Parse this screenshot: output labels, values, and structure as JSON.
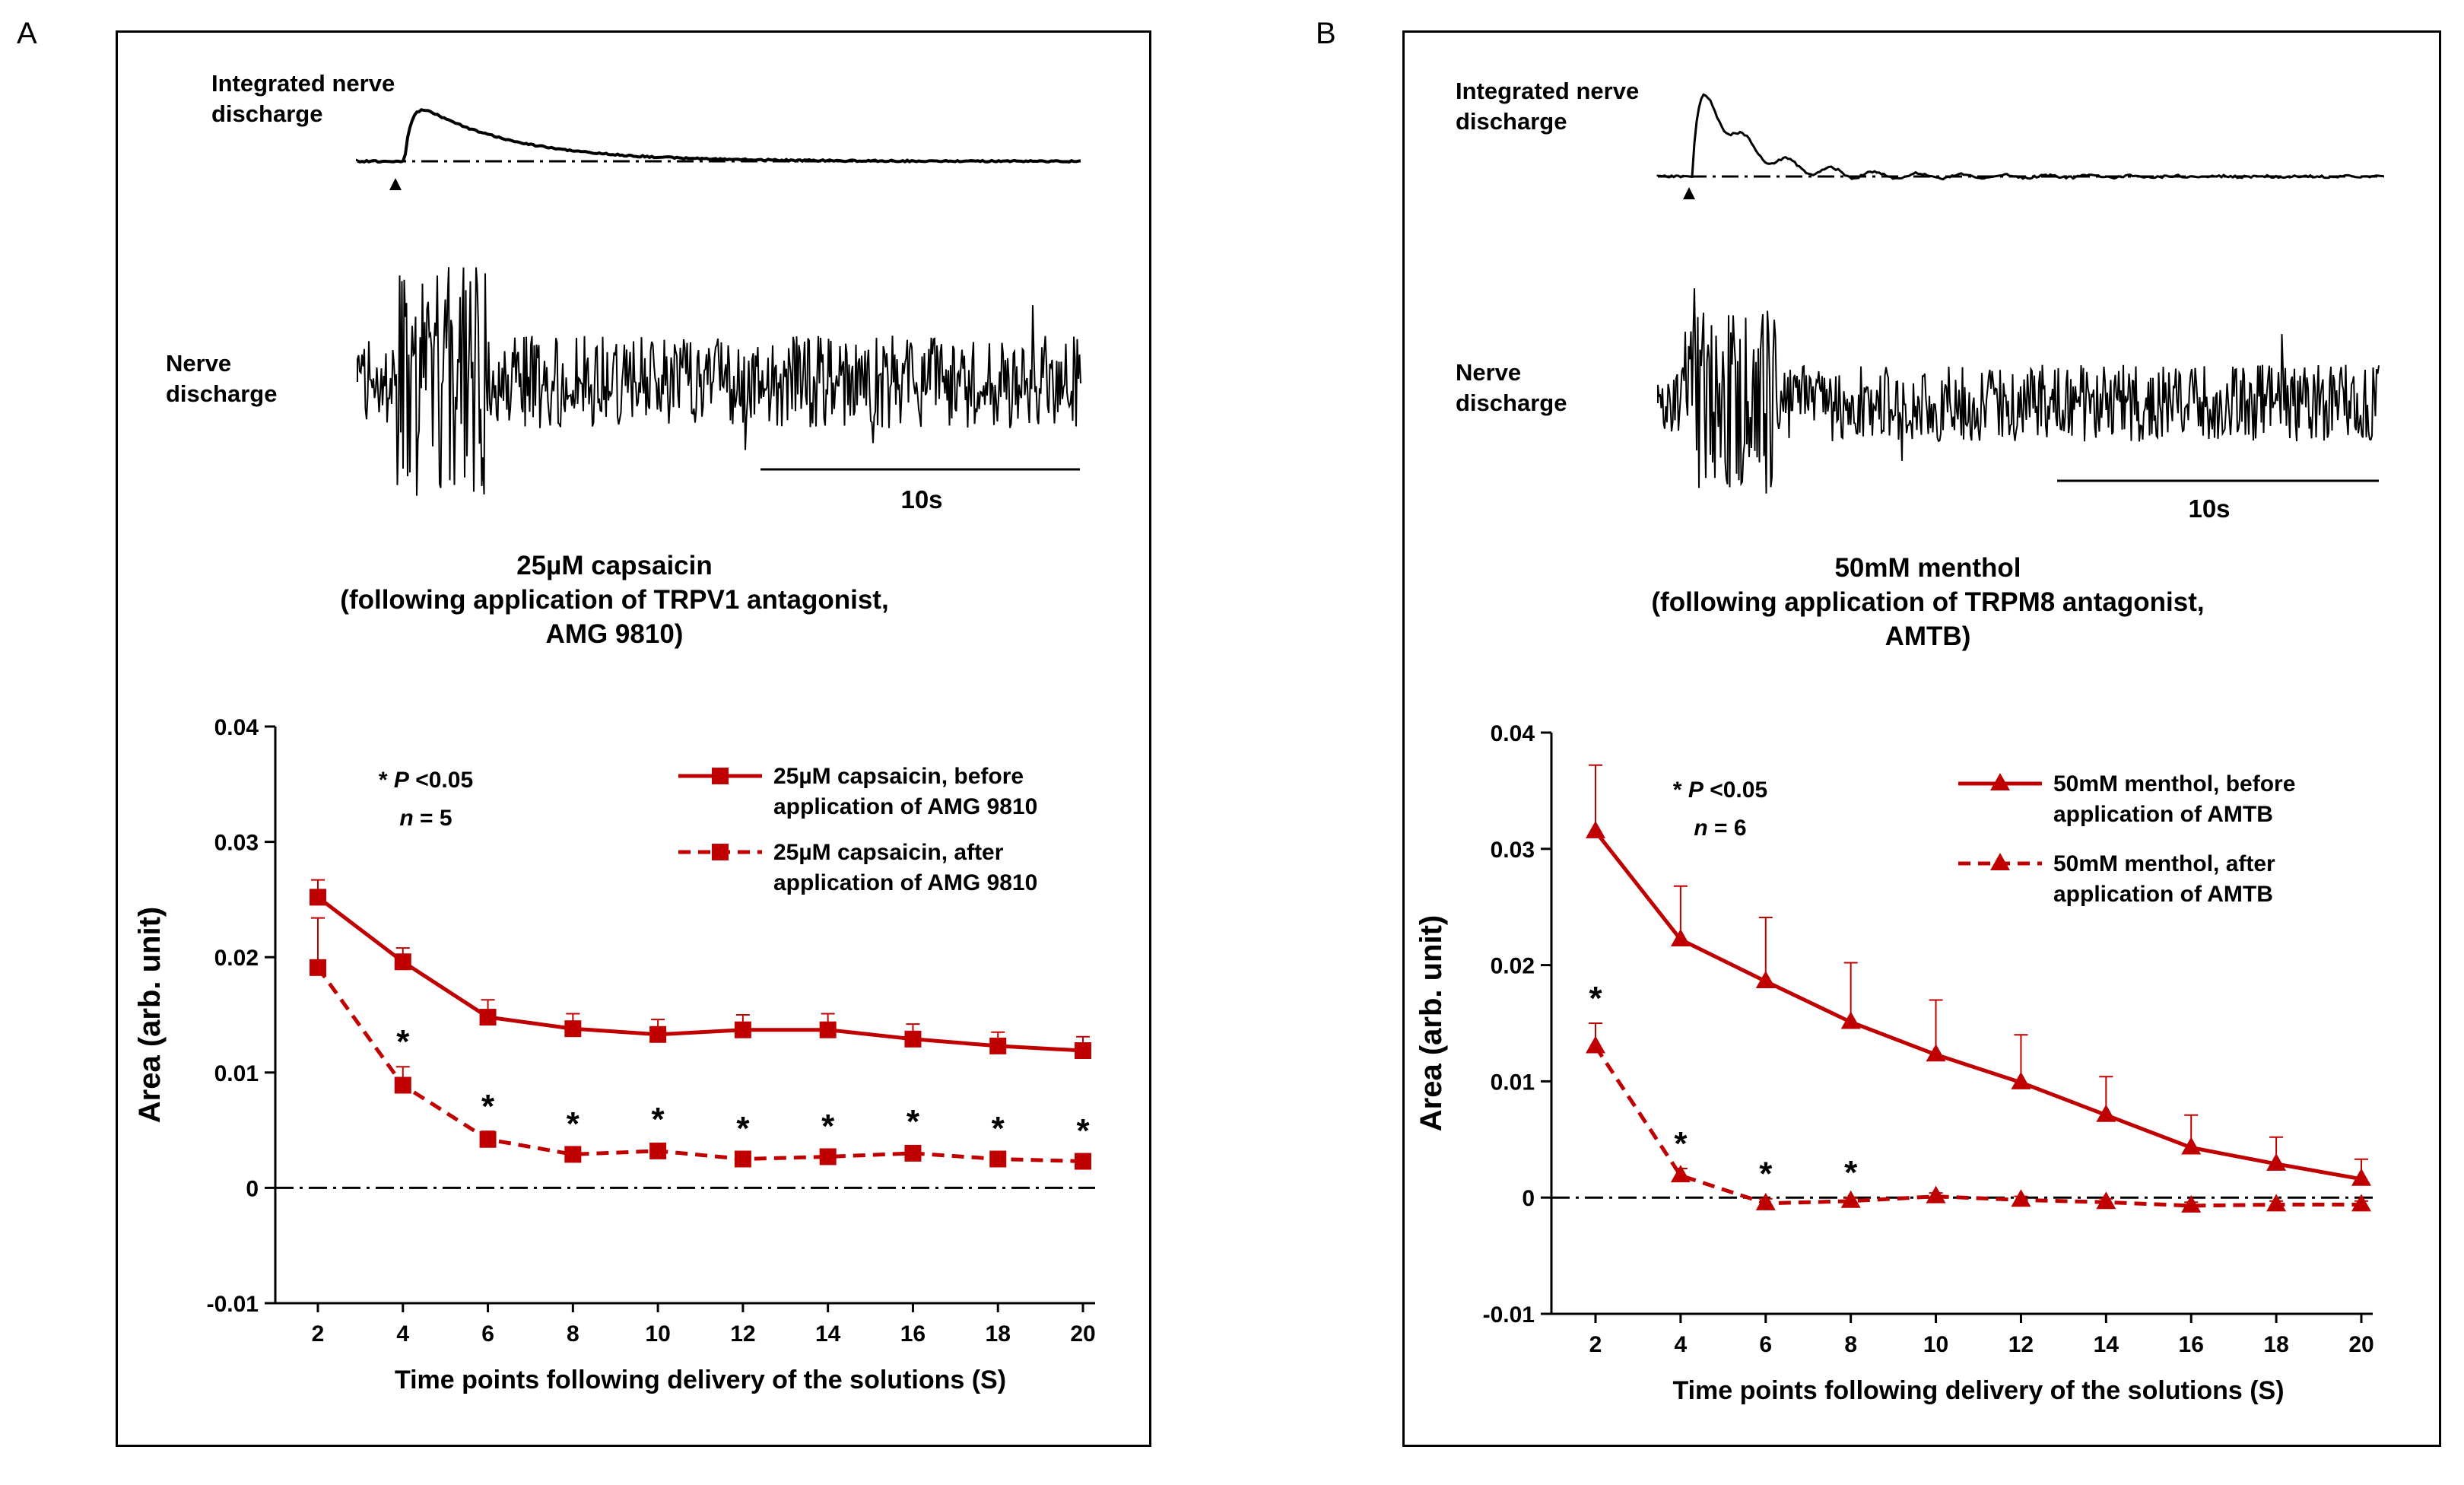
{
  "panels": [
    {
      "letter": "A",
      "integrated_label_1": "Integrated nerve",
      "integrated_label_2": "discharge",
      "nerve_label_1": "Nerve",
      "nerve_label_2": "discharge",
      "scale_label": "10s",
      "title_1": "25µM capsaicin",
      "title_2": "(following application of TRPV1 antagonist,",
      "title_3": "AMG 9810)"
    },
    {
      "letter": "B",
      "integrated_label_1": "Integrated nerve",
      "integrated_label_2": "discharge",
      "nerve_label_1": "Nerve",
      "nerve_label_2": "discharge",
      "scale_label": "10s",
      "title_1": "50mM menthol",
      "title_2": "(following application of TRPM8 antagonist,",
      "title_3": "AMTB)"
    }
  ],
  "chart_data": [
    {
      "type": "line",
      "xlabel": "Time points following delivery of the solutions  (S)",
      "ylabel": "Area (arb. unit)",
      "x": [
        2,
        4,
        6,
        8,
        10,
        12,
        14,
        16,
        18,
        20
      ],
      "ylim": [
        -0.01,
        0.04
      ],
      "yticks": [
        "0.04",
        "0.03",
        "0.02",
        "0.01",
        "0",
        "-0.01"
      ],
      "ytick_values": [
        0.04,
        0.03,
        0.02,
        0.01,
        0,
        -0.01
      ],
      "annotation_p": "* P <0.05",
      "annotation_n": "n = 5",
      "marker": "square",
      "color": "#c00000",
      "series": [
        {
          "name": "25µM capsaicin, before application of AMG 9810",
          "legend_1": "25µM capsaicin, before",
          "legend_2": "application of AMG 9810",
          "style": "solid",
          "values": [
            0.0252,
            0.0196,
            0.0148,
            0.0138,
            0.0133,
            0.0137,
            0.0137,
            0.0129,
            0.0123,
            0.0119
          ],
          "errors": [
            0.0015,
            0.0012,
            0.0015,
            0.0013,
            0.0013,
            0.0013,
            0.0014,
            0.0013,
            0.0012,
            0.0012
          ]
        },
        {
          "name": "25µM capsaicin, after application of AMG 9810",
          "legend_1": "25µM capsaicin, after",
          "legend_2": "application of AMG 9810",
          "style": "dashed",
          "values": [
            0.0191,
            0.0089,
            0.0042,
            0.0029,
            0.0032,
            0.0025,
            0.0027,
            0.003,
            0.0025,
            0.0023
          ],
          "errors": [
            0.0043,
            0.0016,
            0.0007,
            0.0005,
            0.0006,
            0.0005,
            0.0005,
            0.0006,
            0.0005,
            0.0005
          ]
        }
      ],
      "significance": [
        "",
        "*",
        "*",
        "*",
        "*",
        "*",
        "*",
        "*",
        "*",
        "*"
      ]
    },
    {
      "type": "line",
      "xlabel": "Time points following delivery of the solutions  (S)",
      "ylabel": "Area (arb. unit)",
      "x": [
        2,
        4,
        6,
        8,
        10,
        12,
        14,
        16,
        18,
        20
      ],
      "ylim": [
        -0.01,
        0.04
      ],
      "yticks": [
        "0.04",
        "0.03",
        "0.02",
        "0.01",
        "0",
        "-0.01"
      ],
      "ytick_values": [
        0.04,
        0.03,
        0.02,
        0.01,
        0,
        -0.01
      ],
      "annotation_p": "* P <0.05",
      "annotation_n": "n = 6",
      "marker": "triangle",
      "color": "#c00000",
      "series": [
        {
          "name": "50mM menthol, before application of AMTB",
          "legend_1": "50mM menthol, before",
          "legend_2": "application of AMTB",
          "style": "solid",
          "values": [
            0.0315,
            0.0222,
            0.0186,
            0.0151,
            0.0123,
            0.0099,
            0.0071,
            0.0043,
            0.0029,
            0.0016
          ],
          "errors": [
            0.0057,
            0.0046,
            0.0055,
            0.0051,
            0.0047,
            0.0041,
            0.0033,
            0.0028,
            0.0023,
            0.0017
          ]
        },
        {
          "name": "50mM menthol, after application of AMTB",
          "legend_1": "50mM menthol, after",
          "legend_2": "application of AMTB",
          "style": "dashed",
          "values": [
            0.013,
            0.0019,
            -0.0005,
            -0.0003,
            0.0001,
            -0.0002,
            -0.0004,
            -0.0007,
            -0.0006,
            -0.0006
          ],
          "errors": [
            0.002,
            0.0006,
            0.0004,
            0.0003,
            0.0003,
            0.0003,
            0.0003,
            0.0003,
            0.0003,
            0.0003
          ]
        }
      ],
      "significance": [
        "*",
        "*",
        "*",
        "*",
        "",
        "",
        "",
        "",
        "",
        ""
      ]
    }
  ]
}
